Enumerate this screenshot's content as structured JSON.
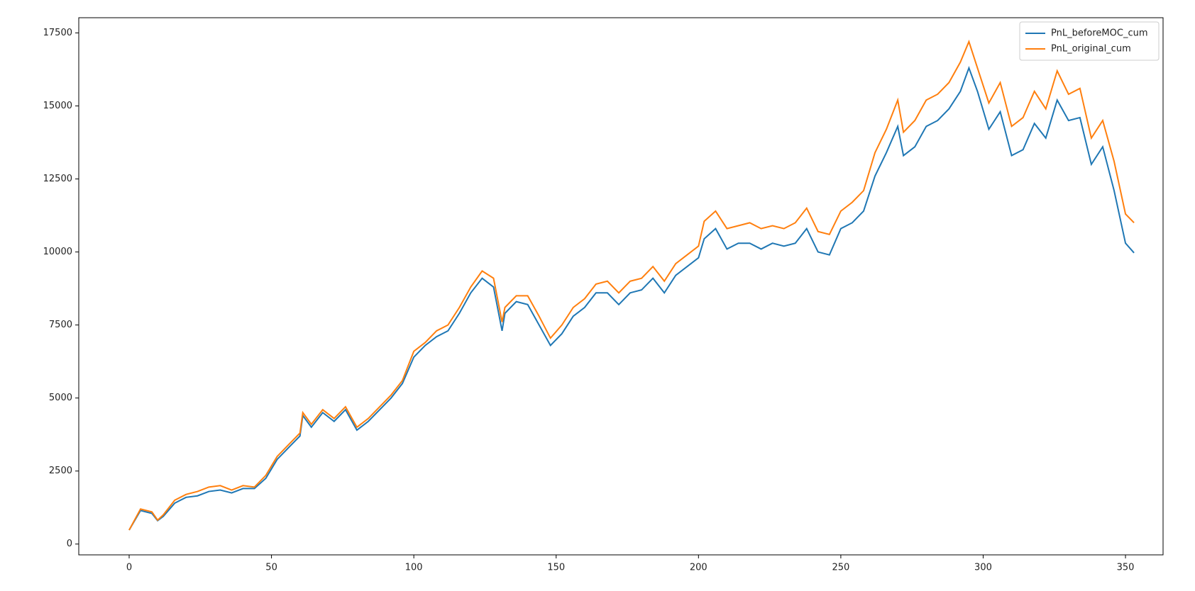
{
  "chart_data": {
    "type": "line",
    "x": [
      0,
      4,
      8,
      10,
      12,
      16,
      20,
      24,
      28,
      32,
      36,
      40,
      44,
      48,
      52,
      56,
      60,
      61,
      64,
      68,
      72,
      76,
      80,
      84,
      88,
      92,
      96,
      100,
      104,
      108,
      112,
      116,
      120,
      124,
      128,
      131,
      132,
      136,
      140,
      144,
      148,
      152,
      156,
      160,
      164,
      168,
      172,
      176,
      180,
      184,
      188,
      192,
      196,
      200,
      202,
      206,
      210,
      214,
      218,
      222,
      226,
      230,
      234,
      238,
      242,
      246,
      250,
      254,
      258,
      262,
      266,
      270,
      272,
      276,
      280,
      284,
      288,
      292,
      295,
      298,
      302,
      306,
      310,
      314,
      318,
      322,
      326,
      330,
      334,
      338,
      342,
      346,
      350,
      353
    ],
    "series": [
      {
        "name": "PnL_beforeMOC_cum",
        "color": "#1f77b4",
        "values": [
          480,
          1150,
          1050,
          800,
          950,
          1400,
          1600,
          1650,
          1800,
          1850,
          1750,
          1900,
          1900,
          2250,
          2900,
          3300,
          3700,
          4400,
          4000,
          4500,
          4200,
          4600,
          3900,
          4200,
          4600,
          5000,
          5500,
          6400,
          6800,
          7100,
          7300,
          7900,
          8600,
          9100,
          8800,
          7300,
          7900,
          8300,
          8200,
          7500,
          6800,
          7200,
          7800,
          8100,
          8600,
          8600,
          8200,
          8600,
          8700,
          9100,
          8600,
          9200,
          9500,
          9800,
          10450,
          10800,
          10100,
          10300,
          10300,
          10100,
          10300,
          10200,
          10300,
          10800,
          10000,
          9900,
          10800,
          11000,
          11400,
          12600,
          13400,
          14300,
          13300,
          13600,
          14300,
          14500,
          14900,
          15500,
          16300,
          15500,
          14200,
          14800,
          13300,
          13500,
          14400,
          13900,
          15200,
          14500,
          14600,
          13000,
          13600,
          12100,
          10300,
          9970
        ]
      },
      {
        "name": "PnL_original_cum",
        "color": "#ff7f0e",
        "values": [
          480,
          1200,
          1100,
          820,
          1000,
          1500,
          1700,
          1800,
          1950,
          2000,
          1850,
          2000,
          1950,
          2350,
          3000,
          3400,
          3800,
          4500,
          4100,
          4600,
          4300,
          4700,
          4000,
          4300,
          4700,
          5100,
          5600,
          6600,
          6900,
          7300,
          7500,
          8100,
          8800,
          9350,
          9100,
          7600,
          8100,
          8500,
          8500,
          7800,
          7050,
          7500,
          8100,
          8400,
          8900,
          9000,
          8600,
          9000,
          9100,
          9500,
          9000,
          9600,
          9900,
          10200,
          11050,
          11400,
          10800,
          10900,
          11000,
          10800,
          10900,
          10800,
          11000,
          11500,
          10700,
          10600,
          11400,
          11700,
          12100,
          13400,
          14200,
          15200,
          14100,
          14500,
          15200,
          15400,
          15800,
          16500,
          17200,
          16300,
          15100,
          15800,
          14300,
          14600,
          15500,
          14900,
          16200,
          15400,
          15600,
          13900,
          14500,
          13100,
          11300,
          11000
        ]
      }
    ],
    "xlim": [
      -17.7,
      363.2
    ],
    "ylim": [
      -370,
      18020
    ],
    "xticks": [
      0,
      50,
      100,
      150,
      200,
      250,
      300,
      350
    ],
    "yticks": [
      0,
      2500,
      5000,
      7500,
      10000,
      12500,
      15000,
      17500
    ],
    "legend": "upper right"
  }
}
